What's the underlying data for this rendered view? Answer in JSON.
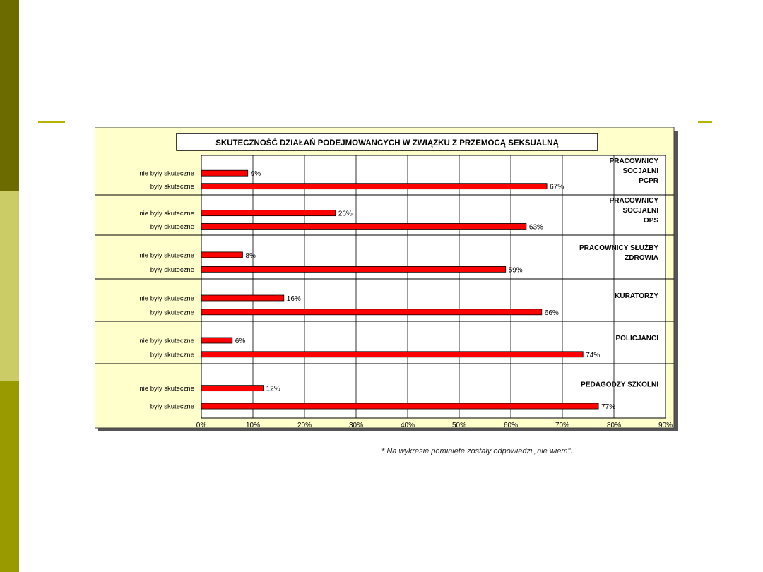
{
  "colors": {
    "band_top": "#6b6b00",
    "band_mid": "#cccc66",
    "band_bottom": "#999900",
    "chart_background": "#ffffcc",
    "bar_fill": "#ff0000"
  },
  "footnote": "* Na wykresie pominięte zostały odpowiedzi „nie wiem\".",
  "chart_data": {
    "type": "bar",
    "orientation": "horizontal",
    "title": "SKUTECZNOŚĆ DZIAŁAŃ PODEJMOWANCYCH W ZWIĄZKU Z PRZEMOCĄ SEKSUALNĄ",
    "xlim": [
      0,
      90
    ],
    "x_ticks": [
      "0%",
      "10%",
      "20%",
      "30%",
      "40%",
      "50%",
      "60%",
      "70%",
      "80%",
      "90%"
    ],
    "grid": true,
    "groups": [
      {
        "name": "PRACOWNICY SOCJALNI PCPR",
        "name_lines": [
          "PRACOWNICY",
          "SOCJALNI",
          "PCPR"
        ],
        "bars": [
          {
            "label": "nie były skuteczne",
            "value": 9,
            "value_label": "9%"
          },
          {
            "label": "były skuteczne",
            "value": 67,
            "value_label": "67%"
          }
        ]
      },
      {
        "name": "PRACOWNICY SOCJALNI OPS",
        "name_lines": [
          "PRACOWNICY",
          "SOCJALNI",
          "OPS"
        ],
        "bars": [
          {
            "label": "nie były skuteczne",
            "value": 26,
            "value_label": "26%"
          },
          {
            "label": "były skuteczne",
            "value": 63,
            "value_label": "63%"
          }
        ]
      },
      {
        "name": "PRACOWNICY SŁUŻBY ZDROWIA",
        "name_lines": [
          "PRACOWNICY SŁUŻBY",
          "ZDROWIA"
        ],
        "bars": [
          {
            "label": "nie były skuteczne",
            "value": 8,
            "value_label": "8%"
          },
          {
            "label": "były skuteczne",
            "value": 59,
            "value_label": "59%"
          }
        ]
      },
      {
        "name": "KURATORZY",
        "name_lines": [
          "KURATORZY"
        ],
        "bars": [
          {
            "label": "nie były skuteczne",
            "value": 16,
            "value_label": "16%"
          },
          {
            "label": "były skuteczne",
            "value": 66,
            "value_label": "66%"
          }
        ]
      },
      {
        "name": "POLICJANCI",
        "name_lines": [
          "POLICJANCI"
        ],
        "bars": [
          {
            "label": "nie były skuteczne",
            "value": 6,
            "value_label": "6%"
          },
          {
            "label": "były skuteczne",
            "value": 74,
            "value_label": "74%"
          }
        ]
      },
      {
        "name": "PEDAGODZY SZKOLNI",
        "name_lines": [
          "PEDAGODZY SZKOLNI"
        ],
        "bars": [
          {
            "label": "nie były skuteczne",
            "value": 12,
            "value_label": "12%"
          },
          {
            "label": "były skuteczne",
            "value": 77,
            "value_label": "77%"
          }
        ]
      }
    ]
  }
}
